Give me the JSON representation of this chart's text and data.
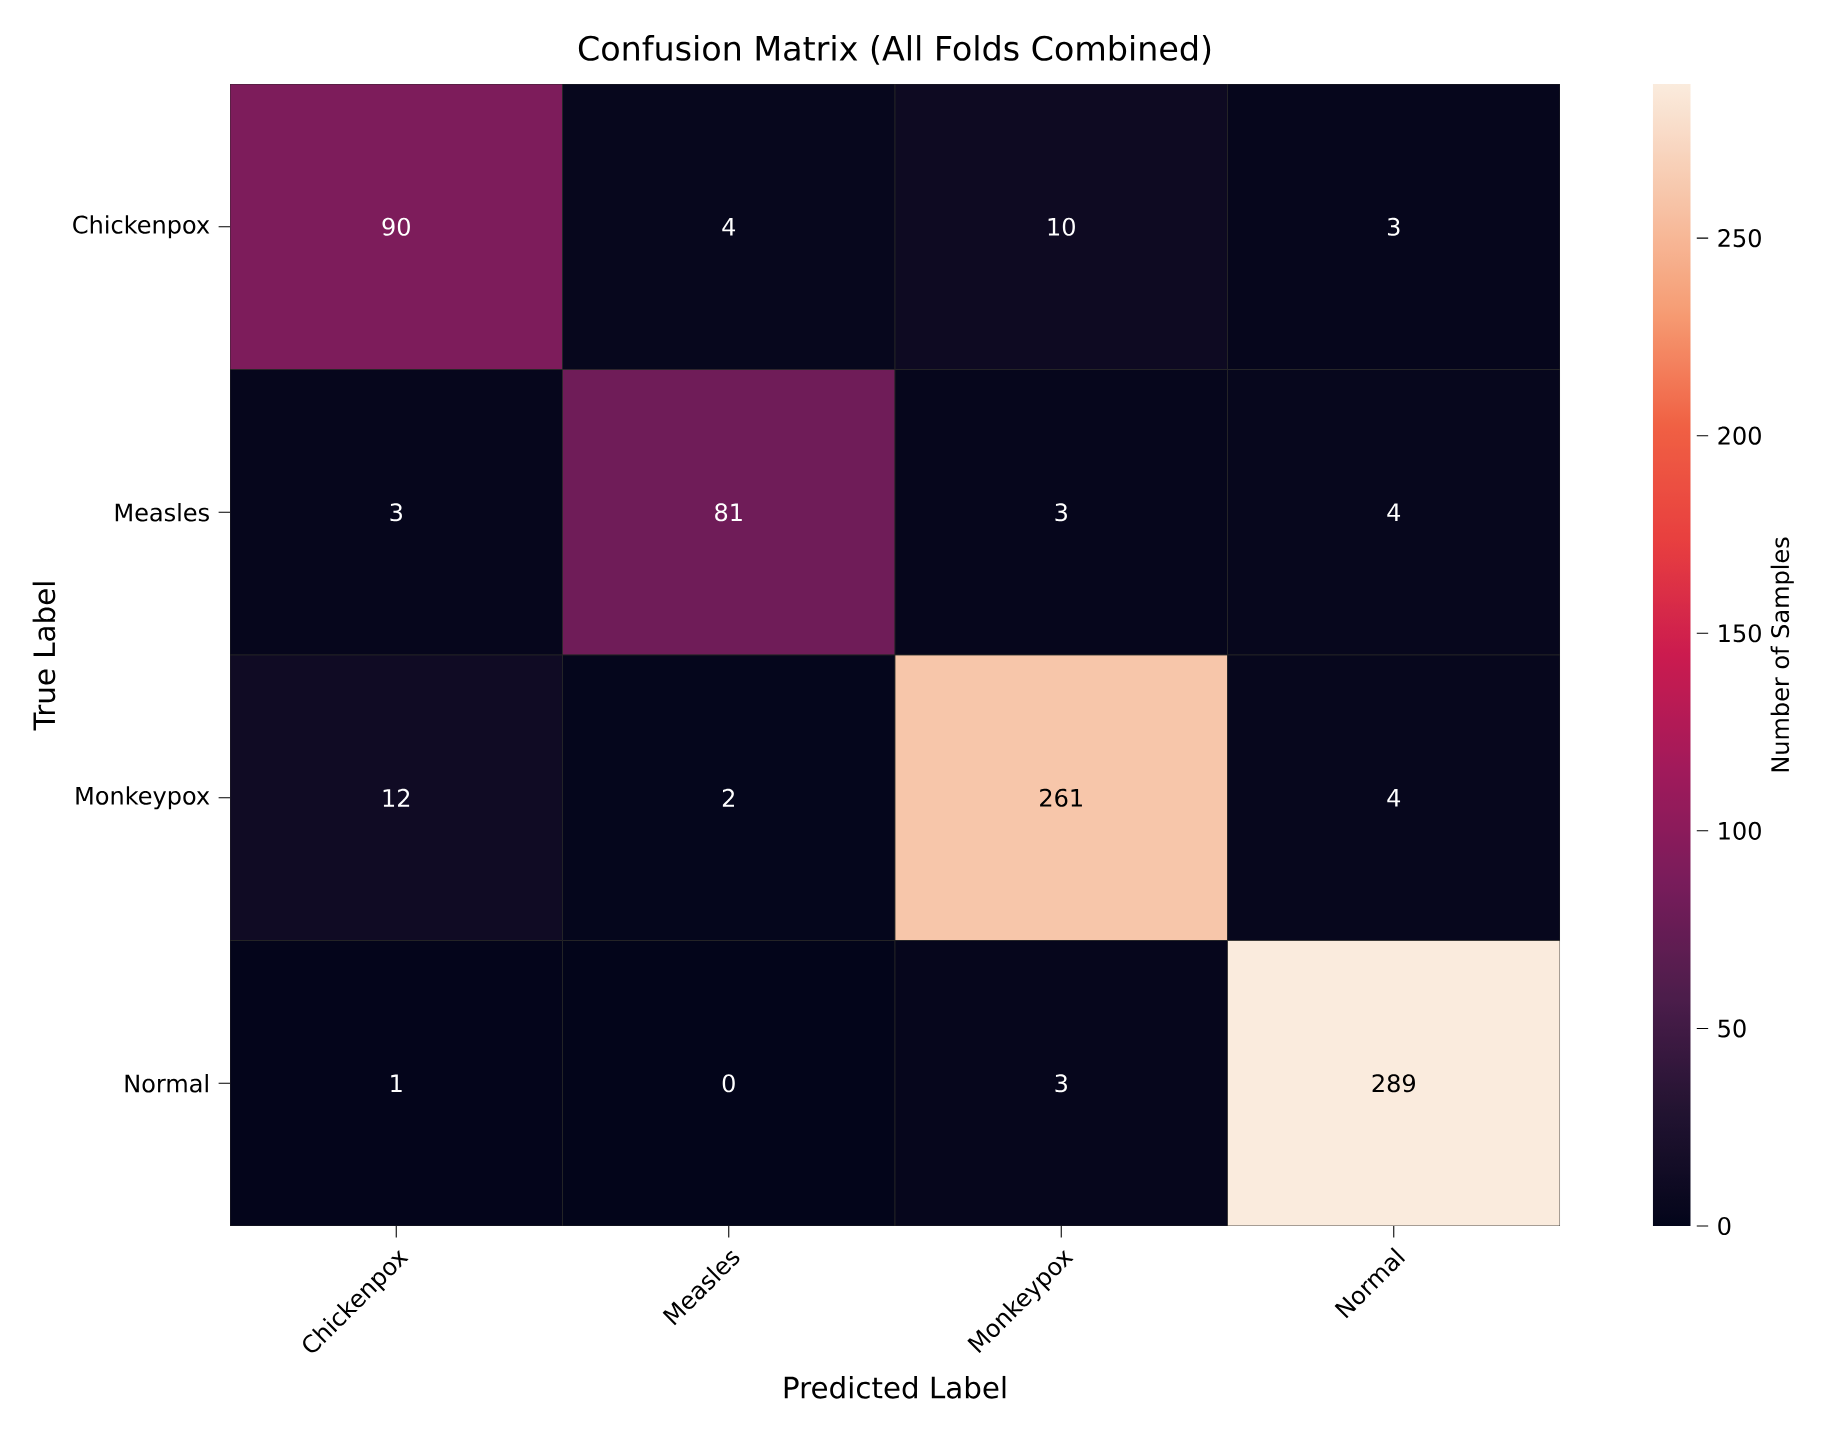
{
  "chart_data": {
    "type": "heatmap",
    "title": "Confusion Matrix (All Folds Combined)",
    "xlabel": "Predicted Label",
    "ylabel": "True Label",
    "clabel": "Number of Samples",
    "categories": [
      "Chickenpox",
      "Measles",
      "Monkeypox",
      "Normal"
    ],
    "y_categories": [
      "Chickenpox",
      "Measles",
      "Monkeypox",
      "Normal"
    ],
    "cells": [
      [
        90,
        4,
        10,
        3
      ],
      [
        3,
        81,
        3,
        4
      ],
      [
        12,
        2,
        261,
        4
      ],
      [
        1,
        0,
        3,
        289
      ]
    ],
    "clim": [
      0,
      289
    ],
    "cticks": [
      0,
      50,
      100,
      150,
      200,
      250
    ],
    "data_labels": true
  }
}
